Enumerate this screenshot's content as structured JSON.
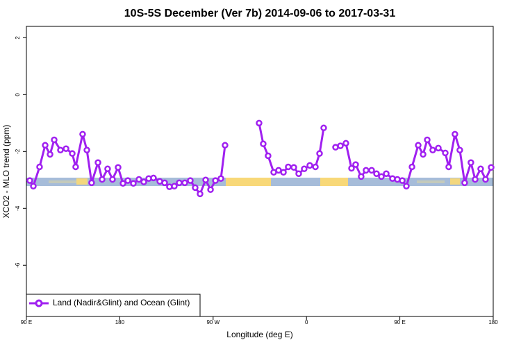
{
  "chart_data": {
    "type": "line",
    "title": "10S-5S December (Ver 7b)   2014-09-06 to 2017-03-31",
    "x_label": "Longitude (deg E)",
    "y_label": "XCO2 - MLO trend (ppm)",
    "x": [
      93.3,
      96.7,
      102.7,
      108.1,
      112.8,
      116.8,
      122.8,
      128.2,
      134.2,
      137.5,
      144.2,
      148.3,
      152.9,
      159.0,
      163.0,
      168.3,
      173.0,
      178.4,
      183.1,
      187.8,
      193.1,
      198.5,
      203.2,
      207.9,
      212.5,
      218.6,
      223.3,
      227.9,
      232.6,
      237.3,
      242.7,
      248.0,
      252.7,
      257.4,
      262.8,
      267.5,
      272.2,
      277.5,
      281.5,
      null,
      314.3,
      318.3,
      323.0,
      328.4,
      333.1,
      337.8,
      342.4,
      347.8,
      352.5,
      357.8,
      363.2,
      368.6,
      372.6,
      376.6,
      null,
      388.0,
      392.7,
      398.0,
      403.4,
      407.4,
      412.7,
      417.4,
      422.8,
      427.5,
      432.2,
      436.9,
      442.9,
      447.6,
      452.3,
      456.3,
      461.7,
      467.7,
      472.4,
      476.4,
      481.7,
      487.1,
      493.8,
      497.1,
      503.1,
      507.8,
      512.5,
      518.5,
      522.6,
      527.9,
      532.6,
      538.0
    ],
    "series": [
      {
        "name": "Land (Nadir&Glint) and Ocean (Glint)",
        "color": "#a020f0",
        "values": [
          -3.02,
          -3.22,
          -2.54,
          -1.78,
          -2.1,
          -1.59,
          -1.95,
          -1.9,
          -2.07,
          -2.54,
          -1.39,
          -1.95,
          -3.1,
          -2.39,
          -2.98,
          -2.61,
          -2.98,
          -2.56,
          -3.12,
          -3.02,
          -3.12,
          -2.98,
          -3.07,
          -2.95,
          -2.93,
          -3.05,
          -3.1,
          -3.24,
          -3.22,
          -3.1,
          -3.1,
          -3.02,
          -3.27,
          -3.49,
          -3.0,
          -3.34,
          -3.02,
          -2.95,
          -1.78,
          null,
          -1.0,
          -1.73,
          -2.15,
          -2.73,
          -2.66,
          -2.73,
          -2.54,
          -2.56,
          -2.78,
          -2.61,
          -2.49,
          -2.54,
          -2.07,
          -1.17,
          null,
          -1.85,
          -1.8,
          -1.71,
          -2.59,
          -2.46,
          -2.88,
          -2.66,
          -2.66,
          -2.78,
          -2.88,
          -2.78,
          -2.95,
          -2.98,
          -3.02,
          -3.22,
          -2.54,
          -1.78,
          -2.1,
          -1.59,
          -1.95,
          -1.88,
          -2.05,
          -2.54,
          -1.39,
          -1.95,
          -3.1,
          -2.39,
          -2.98,
          -2.61,
          -2.98,
          -2.56
        ]
      }
    ],
    "xlim": [
      90,
      540
    ],
    "ylim": [
      -7.8,
      2.4
    ],
    "xticks": [
      {
        "value": 90,
        "label": "90 E"
      },
      180,
      {
        "value": 270,
        "label": "90 W"
      },
      {
        "value": 360,
        "label": "0"
      },
      {
        "value": 450,
        "label": "90 E"
      },
      {
        "value": 540,
        "label": "180"
      }
    ],
    "yticks": [
      -6,
      -4,
      -2,
      0,
      2
    ],
    "legend": "bottom-left"
  }
}
